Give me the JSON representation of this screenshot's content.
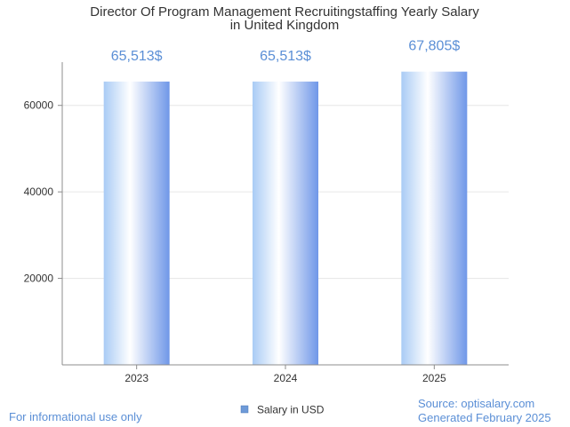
{
  "chart_data": {
    "type": "bar",
    "title_lines": [
      "Director Of Program Management Recruitingstaffing Yearly Salary",
      "in United Kingdom"
    ],
    "categories": [
      "2023",
      "2024",
      "2025"
    ],
    "series": [
      {
        "name": "Salary in USD",
        "values": [
          65513,
          65513,
          67805
        ],
        "labels": [
          "65,513$",
          "65,513$",
          "67,805$"
        ]
      }
    ],
    "ylim": [
      0,
      70000
    ],
    "yticks": [
      20000,
      40000,
      60000
    ],
    "ytick_labels": [
      "20000",
      "40000",
      "60000"
    ],
    "grid": true,
    "legend": "bottom-center",
    "xlabel": "",
    "ylabel": ""
  },
  "colors": {
    "bar_light": "#ffffff",
    "bar_mid": "#a9cbf5",
    "bar_dark": "#6f97e8",
    "label": "#5b8fd6",
    "legend_swatch": "#6e9ad8",
    "grid": "#e6e6e6",
    "axis": "#8c8c8c"
  },
  "footer": {
    "disclaimer": "For informational use only",
    "source": "Source: optisalary.com",
    "generated": "Generated February 2025"
  }
}
